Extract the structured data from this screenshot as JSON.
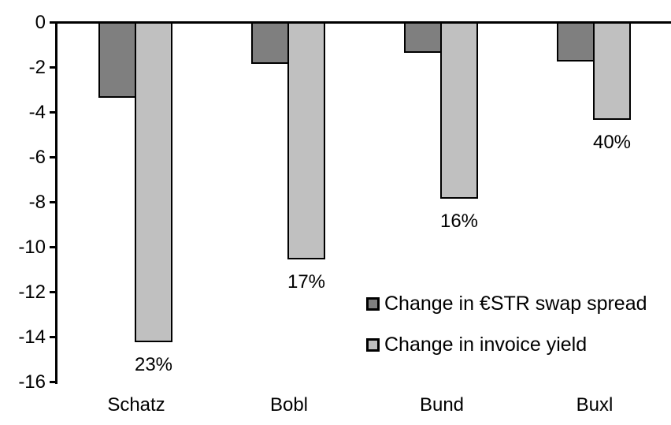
{
  "chart_data": {
    "type": "bar",
    "title": "",
    "xlabel": "",
    "ylabel": "",
    "categories": [
      "Schatz",
      "Bobl",
      "Bund",
      "Buxl"
    ],
    "series": [
      {
        "name": "Change in €STR swap spread",
        "color": "#7F7F7F",
        "values": [
          -3.3,
          -1.8,
          -1.3,
          -1.7
        ]
      },
      {
        "name": "Change in invoice yield",
        "color": "#C0C0C0",
        "values": [
          -14.2,
          -10.5,
          -7.8,
          -4.3
        ]
      }
    ],
    "bar_labels": [
      "23%",
      "17%",
      "16%",
      "40%"
    ],
    "bar_labels_series": "Change in invoice yield",
    "y_ticks": [
      0,
      -2,
      -4,
      -6,
      -8,
      -10,
      -12,
      -14,
      -16
    ],
    "ylim": [
      -16,
      0
    ],
    "grid": false,
    "legend": {
      "position": "inside-right-middle",
      "entries": [
        "Change in €STR swap spread",
        "Change in invoice yield"
      ]
    },
    "colors": {
      "axis": "#000000",
      "bar_border": "#000000",
      "text": "#000000",
      "background": "#FFFFFF"
    }
  }
}
